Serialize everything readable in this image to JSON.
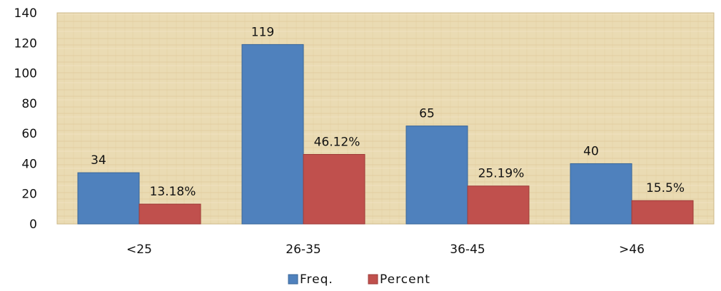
{
  "chart_data": {
    "type": "bar",
    "categories": [
      "<25",
      "26-35",
      "36-45",
      ">46"
    ],
    "series": [
      {
        "name": "Freq.",
        "values": [
          34,
          119,
          65,
          40
        ],
        "labels": [
          "34",
          "119",
          "65",
          "40"
        ],
        "color": "#4F81BD"
      },
      {
        "name": "Percent",
        "values": [
          13.18,
          46.12,
          25.19,
          15.5
        ],
        "labels": [
          "13.18%",
          "46.12%",
          "25.19%",
          "15.5%"
        ],
        "color": "#C0504D"
      }
    ],
    "ylim": [
      0,
      140
    ],
    "yticks": [
      "0",
      "20",
      "40",
      "60",
      "80",
      "100",
      "120",
      "140"
    ],
    "grid": false,
    "legend_position": "bottom",
    "plot_background": "#EADBB3"
  }
}
